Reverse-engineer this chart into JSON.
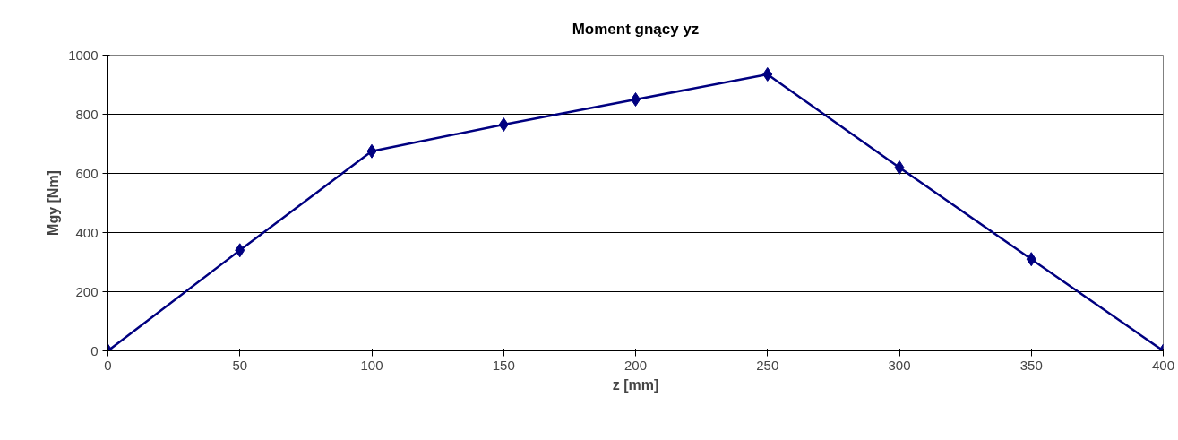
{
  "chart_data": {
    "type": "line",
    "title": "Moment gnący yz",
    "xlabel": "z [mm]",
    "ylabel": "Mgy [Nm]",
    "x": [
      0,
      50,
      100,
      150,
      200,
      250,
      300,
      350,
      400
    ],
    "series": [
      {
        "color": "#000080",
        "values": [
          0,
          340,
          675,
          765,
          850,
          935,
          620,
          310,
          0
        ]
      }
    ],
    "xlim": [
      0,
      400
    ],
    "xticks": [
      0,
      50,
      100,
      150,
      200,
      250,
      300,
      350,
      400
    ],
    "ylim": [
      0,
      1000
    ],
    "yticks": [
      0,
      200,
      400,
      600,
      800,
      1000
    ],
    "grid": "y",
    "marker": "diamond",
    "line_style": "solid"
  }
}
